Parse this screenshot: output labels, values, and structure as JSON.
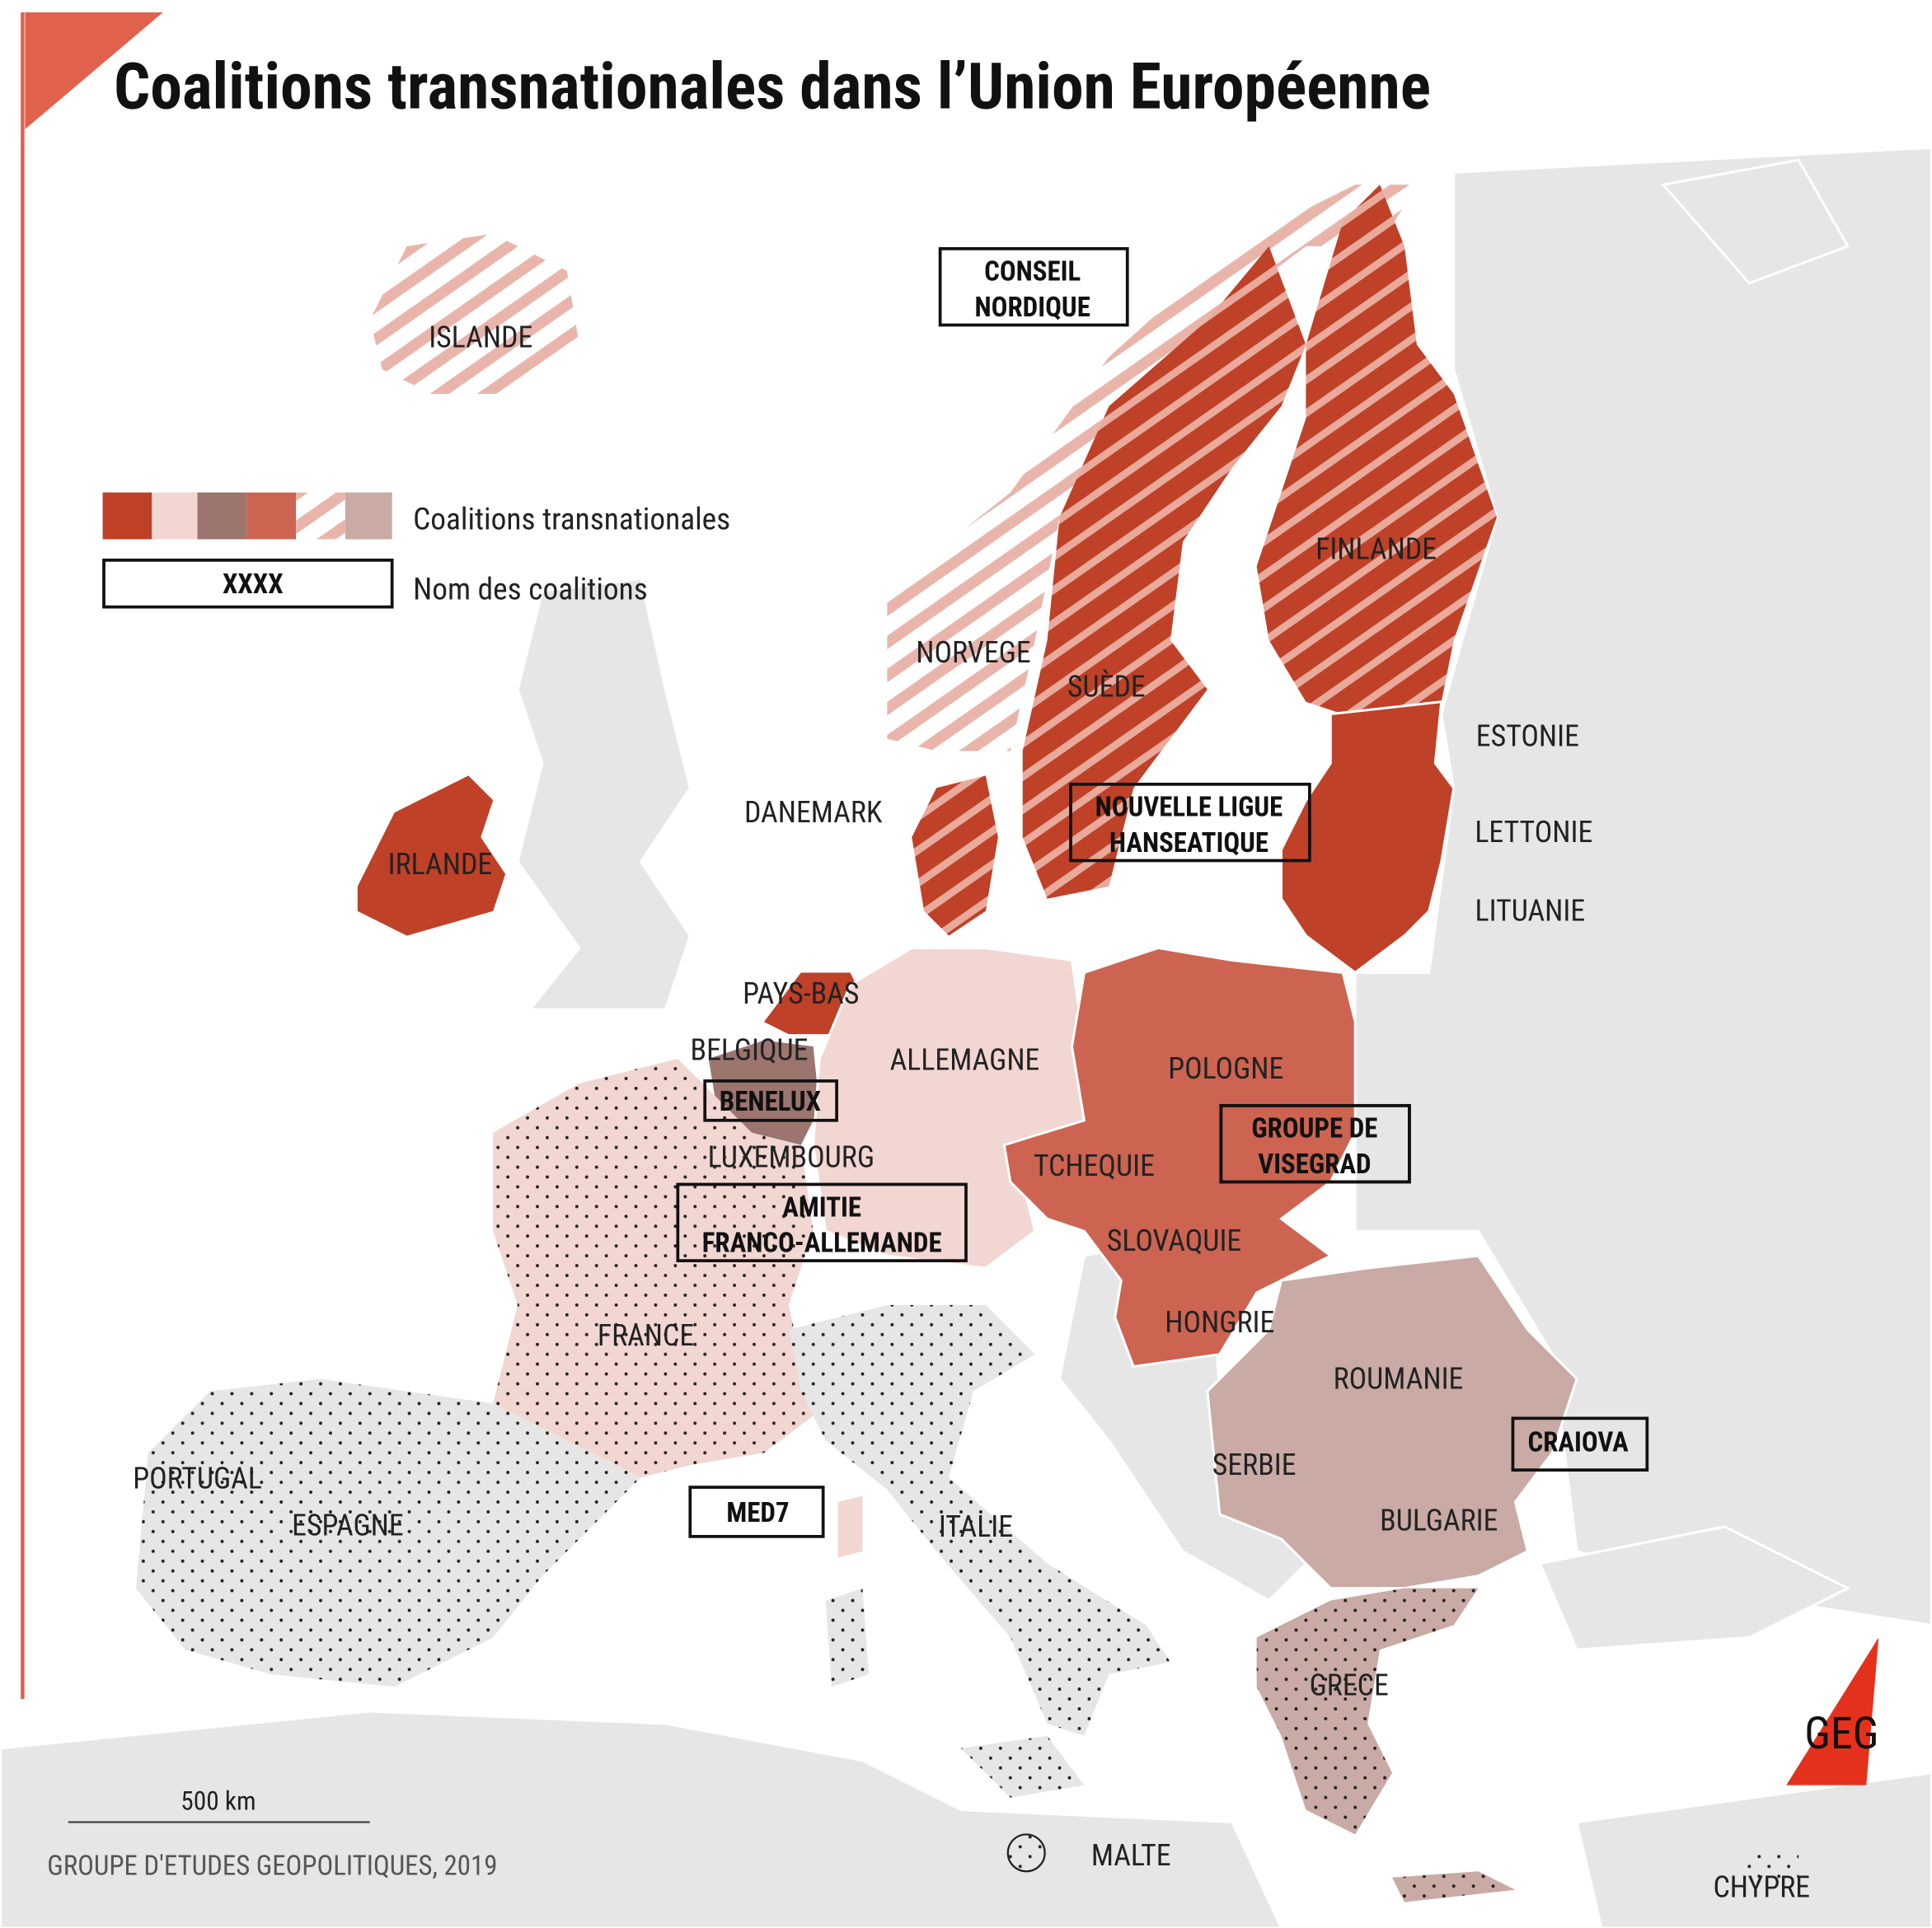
{
  "title": "Coalitions transnationales dans l’Union Européenne",
  "legend": {
    "coalitions": "Coalitions transnationales",
    "sample": "XXXX",
    "names": "Nom des coalitions"
  },
  "countries": [
    "ISLANDE",
    "NORVEGE",
    "SUÈDE",
    "FINLANDE",
    "DANEMARK",
    "ESTONIE",
    "LETTONIE",
    "LITUANIE",
    "IRLANDE",
    "PAYS-BAS",
    "BELGIQUE",
    "LUXEMBOURG",
    "ALLEMAGNE",
    "POLOGNE",
    "TCHEQUIE",
    "SLOVAQUIE",
    "HONGRIE",
    "ROUMANIE",
    "SERBIE",
    "BULGARIE",
    "FRANCE",
    "PORTUGAL",
    "ESPAGNE",
    "ITALIE",
    "GRECE",
    "MALTE",
    "CHYPRE"
  ],
  "coalitions": [
    [
      "CONSEIL",
      "NORDIQUE"
    ],
    [
      "NOUVELLE LIGUE",
      "HANSEATIQUE"
    ],
    [
      "BENELUX"
    ],
    [
      "GROUPE DE",
      "VISEGRAD"
    ],
    [
      "AMITIE",
      "FRANCO-ALLEMANDE"
    ],
    [
      "CRAIOVA"
    ],
    [
      "MED7"
    ]
  ],
  "scale": "500 km",
  "source": "GROUPE D'ETUDES GEOPOLITIQUES, 2019",
  "logo": "GEG"
}
